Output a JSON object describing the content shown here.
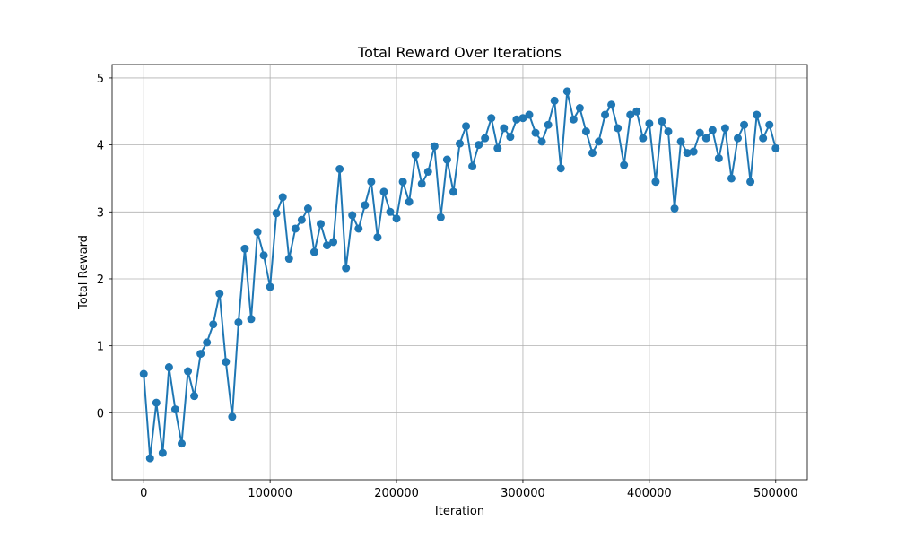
{
  "chart_data": {
    "type": "line",
    "title": "Total Reward Over Iterations",
    "xlabel": "Iteration",
    "ylabel": "Total Reward",
    "xlim": [
      -25000,
      525000
    ],
    "ylim": [
      -1.0,
      5.2
    ],
    "xticks": [
      0,
      100000,
      200000,
      300000,
      400000,
      500000
    ],
    "xtick_labels": [
      "0",
      "100000",
      "200000",
      "300000",
      "400000",
      "500000"
    ],
    "yticks": [
      0,
      1,
      2,
      3,
      4,
      5
    ],
    "ytick_labels": [
      "0",
      "1",
      "2",
      "3",
      "4",
      "5"
    ],
    "grid": true,
    "marker": "circle",
    "series": [
      {
        "color": "#1f77b4",
        "x": [
          0,
          5000,
          10000,
          15000,
          20000,
          25000,
          30000,
          35000,
          40000,
          45000,
          50000,
          55000,
          60000,
          65000,
          70000,
          75000,
          80000,
          85000,
          90000,
          95000,
          100000,
          105000,
          110000,
          115000,
          120000,
          125000,
          130000,
          135000,
          140000,
          145000,
          150000,
          155000,
          160000,
          165000,
          170000,
          175000,
          180000,
          185000,
          190000,
          195000,
          200000,
          205000,
          210000,
          215000,
          220000,
          225000,
          230000,
          235000,
          240000,
          245000,
          250000,
          255000,
          260000,
          265000,
          270000,
          275000,
          280000,
          285000,
          290000,
          295000,
          300000,
          305000,
          310000,
          315000,
          320000,
          325000,
          330000,
          335000,
          340000,
          345000,
          350000,
          355000,
          360000,
          365000,
          370000,
          375000,
          380000,
          385000,
          390000,
          395000,
          400000,
          405000,
          410000,
          415000,
          420000,
          425000,
          430000,
          435000,
          440000,
          445000,
          450000,
          455000,
          460000,
          465000,
          470000,
          475000,
          480000,
          485000,
          490000,
          495000,
          500000
        ],
        "y": [
          0.58,
          -0.68,
          0.15,
          -0.6,
          0.68,
          0.05,
          -0.46,
          0.62,
          0.25,
          0.88,
          1.05,
          1.32,
          1.78,
          0.76,
          -0.06,
          1.35,
          2.45,
          1.4,
          2.7,
          2.35,
          1.88,
          2.98,
          3.22,
          2.3,
          2.75,
          2.88,
          3.05,
          2.4,
          2.82,
          2.5,
          2.55,
          3.64,
          2.16,
          2.95,
          2.75,
          3.1,
          3.45,
          2.62,
          3.3,
          3.0,
          2.9,
          3.45,
          3.15,
          3.85,
          3.42,
          3.6,
          3.98,
          2.92,
          3.78,
          3.3,
          4.02,
          4.28,
          3.68,
          4.0,
          4.1,
          4.4,
          3.95,
          4.25,
          4.12,
          4.38,
          4.4,
          4.45,
          4.18,
          4.05,
          4.3,
          4.66,
          3.65,
          4.8,
          4.38,
          4.55,
          4.2,
          3.88,
          4.05,
          4.45,
          4.6,
          4.25,
          3.7,
          4.45,
          4.5,
          4.1,
          4.32,
          3.45,
          4.35,
          4.2,
          3.05,
          4.05,
          3.88,
          3.9,
          4.18,
          4.1,
          4.22,
          3.8,
          4.25,
          3.5,
          4.1,
          4.3,
          3.45,
          4.45,
          4.1,
          4.3,
          3.95
        ]
      }
    ]
  }
}
